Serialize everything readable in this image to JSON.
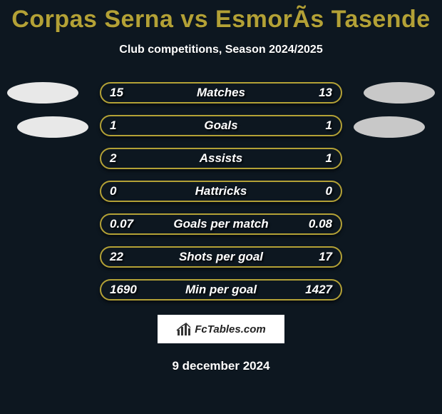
{
  "colors": {
    "background": "#0d1720",
    "accent": "#b3a136",
    "left_team": "#e8e8e8",
    "right_team": "#c8c8c8",
    "text": "#ffffff"
  },
  "header": {
    "title": "Corpas Serna vs EsmorÃs Tasende",
    "title_color": "#b3a136",
    "subtitle": "Club competitions, Season 2024/2025"
  },
  "stats": {
    "rows": [
      {
        "label": "Matches",
        "left": "15",
        "right": "13",
        "show_left_badge": true,
        "show_right_badge": true,
        "left_badge_color": "#e8e8e8",
        "right_badge_color": "#c8c8c8"
      },
      {
        "label": "Goals",
        "left": "1",
        "right": "1",
        "show_left_badge": true,
        "show_right_badge": true,
        "left_badge_color": "#e8e8e8",
        "right_badge_color": "#c8c8c8"
      },
      {
        "label": "Assists",
        "left": "2",
        "right": "1",
        "show_left_badge": false,
        "show_right_badge": false
      },
      {
        "label": "Hattricks",
        "left": "0",
        "right": "0",
        "show_left_badge": false,
        "show_right_badge": false
      },
      {
        "label": "Goals per match",
        "left": "0.07",
        "right": "0.08",
        "show_left_badge": false,
        "show_right_badge": false
      },
      {
        "label": "Shots per goal",
        "left": "22",
        "right": "17",
        "show_left_badge": false,
        "show_right_badge": false
      },
      {
        "label": "Min per goal",
        "left": "1690",
        "right": "1427",
        "show_left_badge": false,
        "show_right_badge": false
      }
    ],
    "pill_border_color": "#b3a136",
    "pill_height": 30,
    "pill_width": 340,
    "row_spacing": 46
  },
  "footer": {
    "brand": "FcTables.com",
    "date": "9 december 2024"
  }
}
